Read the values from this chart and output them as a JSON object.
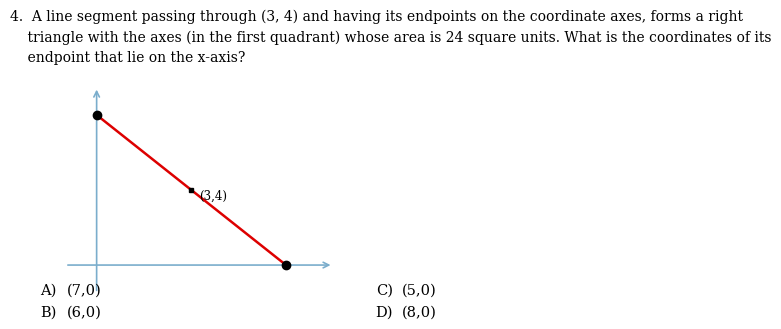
{
  "question_line1": "4.  A line segment passing through (3, 4) and having its endpoints on the coordinate axes, forms a right",
  "question_line2": "    triangle with the axes (in the first quadrant) whose area is 24 square units. What is the coordinates of its",
  "question_line3": "    endpoint that lie on the x-axis?",
  "choices": [
    {
      "label": "A)",
      "text": "(7,0)"
    },
    {
      "label": "B)",
      "text": "(6,0)"
    },
    {
      "label": "C)",
      "text": "(5,0)"
    },
    {
      "label": "D)",
      "text": "(8,0)"
    }
  ],
  "graph": {
    "y_intercept_x": 0,
    "y_intercept_y": 8,
    "x_intercept_x": 6,
    "x_intercept_y": 0,
    "mid_x": 3,
    "mid_y": 4,
    "line_color": "#dd0000",
    "axis_color": "#7aadcc",
    "point_color": "#000000",
    "label_text": "(3,4)",
    "xlim": [
      -1.0,
      7.5
    ],
    "ylim": [
      -1.5,
      9.5
    ]
  },
  "background_color": "#ffffff",
  "text_color": "#000000",
  "q_fontsize": 10.0,
  "choice_fontsize": 10.5
}
